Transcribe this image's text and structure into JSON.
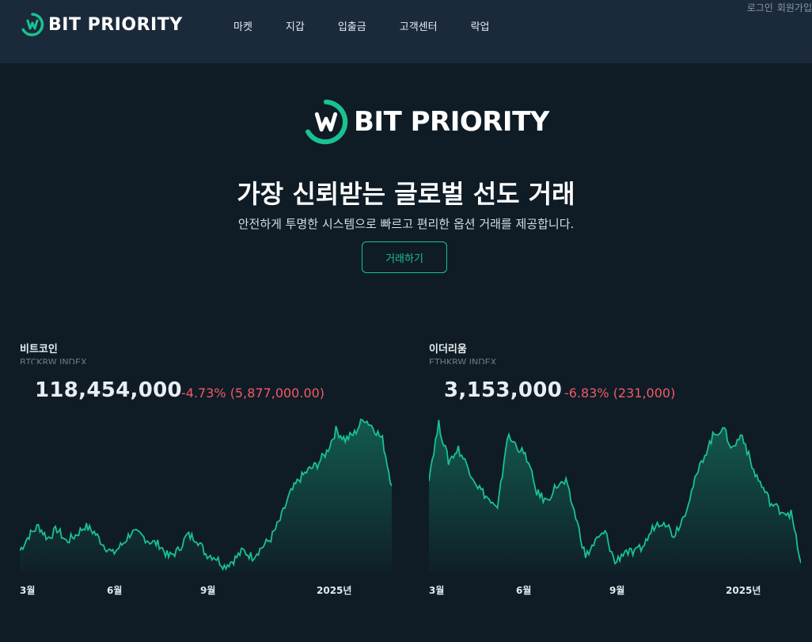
{
  "header": {
    "brand": "BIT PRIORITY",
    "nav": [
      "마켓",
      "지갑",
      "입출금",
      "고객센터",
      "락업"
    ],
    "auth": {
      "login": "로그인",
      "signup": "회원가입"
    }
  },
  "hero": {
    "brand": "BIT PRIORITY",
    "title": "가장 신뢰받는 글로벌 선도 거래",
    "subtitle": "안전하게 투명한 시스템으로 빠르고 편리한 옵션 거래를 제공합니다.",
    "cta_label": "거래하기"
  },
  "colors": {
    "accent": "#19c28f",
    "negative": "#f05a66",
    "header_bg": "#1a2a3a",
    "page_bg": "#0f1c26"
  },
  "markets": [
    {
      "name": "비트코인",
      "index": "BTCKRW INDEX",
      "price": "118,454,000",
      "change": "-4.73% (5,877,000.00)"
    },
    {
      "name": "이더리움",
      "index": "ETHKRW INDEX",
      "price": "3,153,000",
      "change": "-6.83% (231,000)"
    }
  ],
  "chart_data": [
    {
      "type": "area",
      "series": [
        {
          "name": "비트코인",
          "values": [
            0.14,
            0.24,
            0.3,
            0.22,
            0.28,
            0.2,
            0.24,
            0.3,
            0.26,
            0.18,
            0.12,
            0.18,
            0.26,
            0.24,
            0.2,
            0.18,
            0.1,
            0.14,
            0.24,
            0.22,
            0.12,
            0.1,
            0.04,
            0.08,
            0.14,
            0.1,
            0.16,
            0.22,
            0.34,
            0.5,
            0.6,
            0.66,
            0.7,
            0.78,
            0.92,
            0.86,
            0.9,
            1.0,
            0.94,
            0.86,
            0.56
          ]
        }
      ],
      "x_ticks": [
        "3월",
        "6월",
        "9월",
        "2025년"
      ],
      "legend": false,
      "grid": false
    },
    {
      "type": "area",
      "series": [
        {
          "name": "이더리움",
          "values": [
            0.62,
            0.96,
            0.72,
            0.8,
            0.68,
            0.56,
            0.48,
            0.4,
            0.88,
            0.82,
            0.74,
            0.52,
            0.46,
            0.56,
            0.58,
            0.36,
            0.1,
            0.2,
            0.26,
            0.06,
            0.14,
            0.12,
            0.18,
            0.3,
            0.34,
            0.24,
            0.36,
            0.56,
            0.74,
            0.88,
            0.94,
            0.8,
            0.9,
            0.68,
            0.56,
            0.44,
            0.4,
            0.38,
            0.06
          ]
        }
      ],
      "x_ticks": [
        "3월",
        "6월",
        "9월",
        "2025년"
      ],
      "legend": false,
      "grid": false
    }
  ]
}
